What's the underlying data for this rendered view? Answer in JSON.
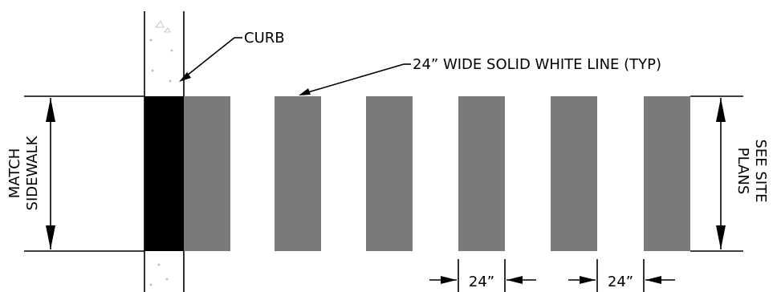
{
  "labels": {
    "curb": "CURB",
    "line_note": "24” WIDE SOLID WHITE LINE (TYP)",
    "match_1": "MATCH",
    "match_2": "SIDEWALK",
    "see_1": "SEE SITE",
    "see_2": "PLANS",
    "dim_1": "24”",
    "dim_2": "24”"
  },
  "colors": {
    "stripe": "#7a7a7a",
    "curb_fill": "#000000",
    "line": "#000000"
  },
  "stripes_count": 6
}
